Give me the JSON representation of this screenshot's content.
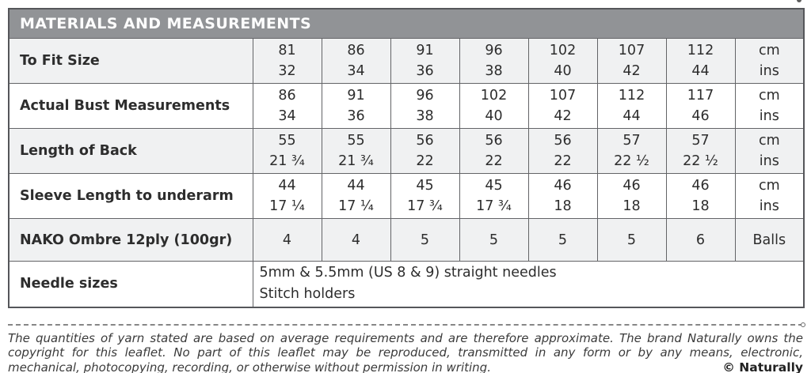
{
  "header": {
    "title": "MATERIALS AND MEASUREMENTS"
  },
  "table": {
    "rows": [
      {
        "label": "To Fit Size",
        "shaded": true,
        "cells": [
          [
            "81",
            "32"
          ],
          [
            "86",
            "34"
          ],
          [
            "91",
            "36"
          ],
          [
            "96",
            "38"
          ],
          [
            "102",
            "40"
          ],
          [
            "107",
            "42"
          ],
          [
            "112",
            "44"
          ],
          [
            "cm",
            "ins"
          ]
        ]
      },
      {
        "label": "Actual Bust Measurements",
        "shaded": false,
        "cells": [
          [
            "86",
            "34"
          ],
          [
            "91",
            "36"
          ],
          [
            "96",
            "38"
          ],
          [
            "102",
            "40"
          ],
          [
            "107",
            "42"
          ],
          [
            "112",
            "44"
          ],
          [
            "117",
            "46"
          ],
          [
            "cm",
            "ins"
          ]
        ]
      },
      {
        "label": "Length of Back",
        "shaded": true,
        "cells": [
          [
            "55",
            "21 ¾"
          ],
          [
            "55",
            "21 ¾"
          ],
          [
            "56",
            "22"
          ],
          [
            "56",
            "22"
          ],
          [
            "56",
            "22"
          ],
          [
            "57",
            "22 ½"
          ],
          [
            "57",
            "22 ½"
          ],
          [
            "cm",
            "ins"
          ]
        ]
      },
      {
        "label": "Sleeve Length to underarm",
        "shaded": false,
        "cells": [
          [
            "44",
            "17 ¼"
          ],
          [
            "44",
            "17 ¼"
          ],
          [
            "45",
            "17 ¾"
          ],
          [
            "45",
            "17 ¾"
          ],
          [
            "46",
            "18"
          ],
          [
            "46",
            "18"
          ],
          [
            "46",
            "18"
          ],
          [
            "cm",
            "ins"
          ]
        ]
      },
      {
        "label": "NAKO Ombre 12ply (100gr)",
        "shaded": true,
        "cells": [
          [
            "4"
          ],
          [
            "4"
          ],
          [
            "5"
          ],
          [
            "5"
          ],
          [
            "5"
          ],
          [
            "5"
          ],
          [
            "6"
          ],
          [
            "Balls"
          ]
        ]
      },
      {
        "label": "Needle sizes",
        "shaded": false,
        "span_lines": [
          "5mm & 5.5mm (US 8 & 9) straight needles",
          "Stitch holders"
        ]
      }
    ]
  },
  "footer": {
    "disclaimer": "The quantities of yarn stated are based on average requirements and are therefore approximate. The brand Naturally owns the copyright for this leaflet. No part of this leaflet may be reproduced, transmitted in any form or by any means, electronic, mechanical, photocopying, recording, or otherwise without permission in writing.",
    "copyright": "© Naturally"
  },
  "colors": {
    "header_bg": "#919396",
    "shaded_row_bg": "#f0f1f2",
    "table_border": "#5b5c5e",
    "text": "#2d2d2d"
  }
}
